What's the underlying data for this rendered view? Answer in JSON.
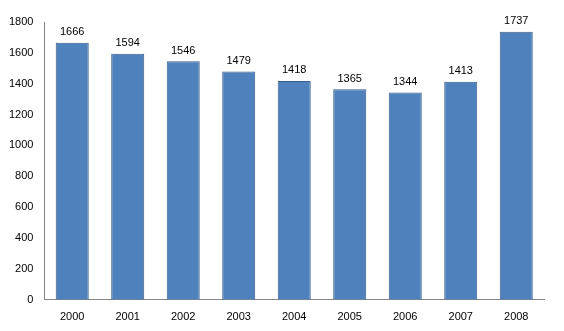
{
  "chart_data": {
    "type": "bar",
    "categories": [
      "2000",
      "2001",
      "2002",
      "2003",
      "2004",
      "2005",
      "2006",
      "2007",
      "2008"
    ],
    "values": [
      1666,
      1594,
      1546,
      1479,
      1418,
      1365,
      1344,
      1413,
      1737
    ],
    "color": "#4f81bd",
    "ylim": [
      0,
      1800
    ],
    "yticks": [
      0,
      200,
      400,
      600,
      800,
      1000,
      1200,
      1400,
      1600,
      1800
    ],
    "grid": false,
    "data_labels": true
  }
}
